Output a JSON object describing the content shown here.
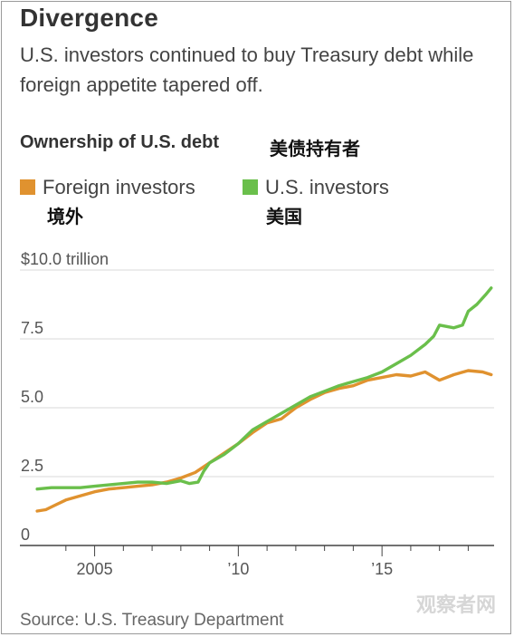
{
  "title": "Divergence",
  "subtitle": "U.S. investors continued to buy Treasury debt while foreign appetite tapered off.",
  "chart_heading": "Ownership of U.S. debt",
  "chart_heading_cn": "美债持有者",
  "legend": [
    {
      "label": "Foreign investors",
      "label_cn": "境外",
      "color": "#e0922f"
    },
    {
      "label": "U.S. investors",
      "label_cn": "美国",
      "color": "#6abf4b"
    }
  ],
  "source": "Source: U.S. Treasury Department",
  "watermark": "观察者网",
  "chart_data": {
    "type": "line",
    "ylim": [
      0,
      10
    ],
    "xlim": [
      2002.4,
      2018.9
    ],
    "y_ticks": [
      {
        "value": 0,
        "label": "0"
      },
      {
        "value": 2.5,
        "label": "2.5"
      },
      {
        "value": 5.0,
        "label": "5.0"
      },
      {
        "value": 7.5,
        "label": "7.5"
      },
      {
        "value": 10.0,
        "label": "$10.0 trillion"
      }
    ],
    "x_ticks": [
      {
        "value": 2004,
        "label": ""
      },
      {
        "value": 2005,
        "label": "2005"
      },
      {
        "value": 2006,
        "label": ""
      },
      {
        "value": 2007,
        "label": ""
      },
      {
        "value": 2008,
        "label": ""
      },
      {
        "value": 2009,
        "label": ""
      },
      {
        "value": 2010,
        "label": "’10"
      },
      {
        "value": 2011,
        "label": ""
      },
      {
        "value": 2012,
        "label": ""
      },
      {
        "value": 2013,
        "label": ""
      },
      {
        "value": 2014,
        "label": ""
      },
      {
        "value": 2015,
        "label": "’15"
      },
      {
        "value": 2016,
        "label": ""
      },
      {
        "value": 2017,
        "label": ""
      },
      {
        "value": 2018,
        "label": ""
      }
    ],
    "grid": "horizontal",
    "series": [
      {
        "name": "Foreign investors",
        "color": "#e0922f",
        "x": [
          2003.0,
          2003.3,
          2003.6,
          2004.0,
          2004.5,
          2005.0,
          2005.5,
          2006.0,
          2006.5,
          2007.0,
          2007.5,
          2008.0,
          2008.5,
          2009.0,
          2009.5,
          2010.0,
          2010.5,
          2011.0,
          2011.5,
          2012.0,
          2012.5,
          2013.0,
          2013.5,
          2014.0,
          2014.5,
          2015.0,
          2015.5,
          2016.0,
          2016.5,
          2017.0,
          2017.5,
          2018.0,
          2018.5,
          2018.8
        ],
        "values": [
          1.25,
          1.3,
          1.45,
          1.65,
          1.8,
          1.95,
          2.05,
          2.1,
          2.15,
          2.2,
          2.3,
          2.45,
          2.65,
          3.0,
          3.35,
          3.7,
          4.1,
          4.45,
          4.6,
          5.0,
          5.3,
          5.55,
          5.7,
          5.8,
          6.0,
          6.1,
          6.2,
          6.15,
          6.3,
          6.0,
          6.2,
          6.35,
          6.3,
          6.2
        ]
      },
      {
        "name": "U.S. investors",
        "color": "#6abf4b",
        "x": [
          2003.0,
          2003.5,
          2004.0,
          2004.5,
          2005.0,
          2005.5,
          2006.0,
          2006.5,
          2007.0,
          2007.5,
          2008.0,
          2008.3,
          2008.6,
          2008.8,
          2009.0,
          2009.5,
          2010.0,
          2010.5,
          2011.0,
          2011.5,
          2012.0,
          2012.5,
          2013.0,
          2013.5,
          2014.0,
          2014.5,
          2015.0,
          2015.5,
          2016.0,
          2016.5,
          2016.8,
          2017.0,
          2017.5,
          2017.8,
          2018.0,
          2018.3,
          2018.6,
          2018.8
        ],
        "values": [
          2.05,
          2.1,
          2.1,
          2.1,
          2.15,
          2.2,
          2.25,
          2.3,
          2.3,
          2.25,
          2.35,
          2.25,
          2.3,
          2.7,
          3.0,
          3.3,
          3.7,
          4.2,
          4.5,
          4.8,
          5.1,
          5.4,
          5.6,
          5.8,
          5.95,
          6.1,
          6.3,
          6.6,
          6.9,
          7.3,
          7.6,
          8.0,
          7.9,
          8.0,
          8.5,
          8.75,
          9.1,
          9.35
        ]
      }
    ]
  }
}
